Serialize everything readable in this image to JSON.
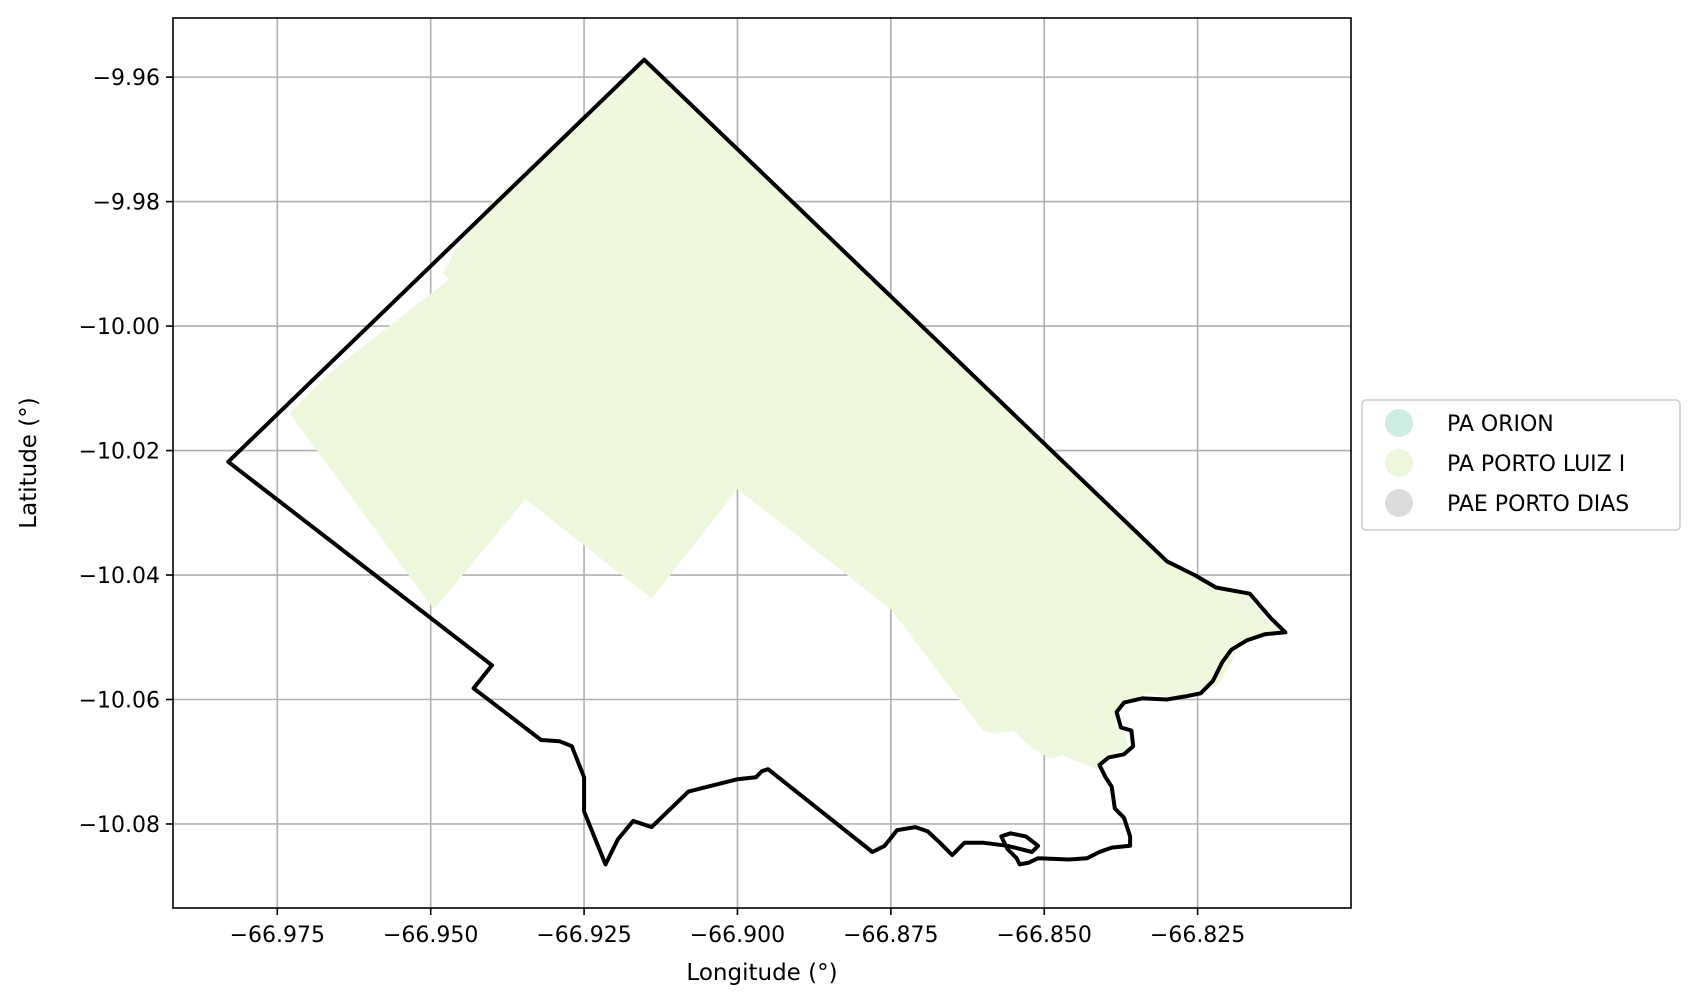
{
  "chart_data": {
    "type": "map",
    "xlabel": "Longitude (°)",
    "ylabel": "Latitude (°)",
    "xlim": [
      -66.992,
      -66.8
    ],
    "ylim": [
      -10.0935,
      -9.9505
    ],
    "grid": true,
    "x_ticks": [
      -66.975,
      -66.95,
      -66.925,
      -66.9,
      -66.875,
      -66.85,
      -66.825
    ],
    "x_tick_labels": [
      "−66.975",
      "−66.950",
      "−66.925",
      "−66.900",
      "−66.875",
      "−66.850",
      "−66.825"
    ],
    "y_ticks": [
      -9.96,
      -9.98,
      -10.0,
      -10.02,
      -10.04,
      -10.06,
      -10.08
    ],
    "y_tick_labels": [
      "−9.96",
      "−9.98",
      "−10.00",
      "−10.02",
      "−10.04",
      "−10.06",
      "−10.08"
    ],
    "legend_placement": "right, outside plot",
    "legend": [
      {
        "label": "PA ORION",
        "color": "#cdeee0"
      },
      {
        "label": "PA PORTO LUIZ I",
        "color": "#eef8dd"
      },
      {
        "label": "PAE PORTO DIAS",
        "color": "#dcdcdc"
      }
    ],
    "areas": [
      {
        "name": "PA PORTO LUIZ I",
        "color": "#eef8dd",
        "coords": [
          [
            -66.9152,
            -9.9572
          ],
          [
            -66.83,
            -10.0375
          ],
          [
            -66.8255,
            -10.04
          ],
          [
            -66.822,
            -10.042
          ],
          [
            -66.817,
            -10.043
          ],
          [
            -66.814,
            -10.047
          ],
          [
            -66.8107,
            -10.0493
          ],
          [
            -66.814,
            -10.0495
          ],
          [
            -66.818,
            -10.051
          ],
          [
            -66.8197,
            -10.0543
          ],
          [
            -66.8215,
            -10.0575
          ],
          [
            -66.8245,
            -10.059
          ],
          [
            -66.828,
            -10.06
          ],
          [
            -66.833,
            -10.059
          ],
          [
            -66.836,
            -10.06
          ],
          [
            -66.8375,
            -10.0615
          ],
          [
            -66.8385,
            -10.064
          ],
          [
            -66.8368,
            -10.0655
          ],
          [
            -66.8362,
            -10.068
          ],
          [
            -66.8395,
            -10.069
          ],
          [
            -66.8415,
            -10.0712
          ],
          [
            -66.847,
            -10.069
          ],
          [
            -66.849,
            -10.0695
          ],
          [
            -66.852,
            -10.0678
          ],
          [
            -66.855,
            -10.065
          ],
          [
            -66.858,
            -10.0655
          ],
          [
            -66.86,
            -10.065
          ],
          [
            -66.875,
            -10.0455
          ],
          [
            -66.9,
            -10.0262
          ],
          [
            -66.914,
            -10.0438
          ],
          [
            -66.9345,
            -10.0278
          ],
          [
            -66.9495,
            -10.0455
          ],
          [
            -66.973,
            -10.014
          ],
          [
            -66.967,
            -10.008
          ],
          [
            -66.96,
            -10.0025
          ],
          [
            -66.947,
            -9.9925
          ],
          [
            -66.948,
            -9.9915
          ],
          [
            -66.946,
            -9.988
          ],
          [
            -66.94,
            -9.98
          ]
        ]
      }
    ],
    "boundary": {
      "name": "outline",
      "color": "#000000",
      "coords": [
        [
          -66.9152,
          -9.9572
        ],
        [
          -66.983,
          -10.0218
        ],
        [
          -66.94,
          -10.0545
        ],
        [
          -66.943,
          -10.0582
        ],
        [
          -66.932,
          -10.0665
        ],
        [
          -66.929,
          -10.0667
        ],
        [
          -66.927,
          -10.0675
        ],
        [
          -66.925,
          -10.0725
        ],
        [
          -66.925,
          -10.078
        ],
        [
          -66.9215,
          -10.0865
        ],
        [
          -66.9195,
          -10.0825
        ],
        [
          -66.917,
          -10.0795
        ],
        [
          -66.914,
          -10.0805
        ],
        [
          -66.908,
          -10.0748
        ],
        [
          -66.9,
          -10.0728
        ],
        [
          -66.897,
          -10.0725
        ],
        [
          -66.896,
          -10.0715
        ],
        [
          -66.895,
          -10.0712
        ],
        [
          -66.878,
          -10.0845
        ],
        [
          -66.876,
          -10.0835
        ],
        [
          -66.874,
          -10.081
        ],
        [
          -66.871,
          -10.0805
        ],
        [
          -66.869,
          -10.0812
        ],
        [
          -66.867,
          -10.083
        ],
        [
          -66.865,
          -10.085
        ],
        [
          -66.863,
          -10.083
        ],
        [
          -66.86,
          -10.083
        ],
        [
          -66.856,
          -10.0835
        ],
        [
          -66.852,
          -10.0845
        ],
        [
          -66.851,
          -10.0835
        ],
        [
          -66.853,
          -10.082
        ],
        [
          -66.8555,
          -10.0815
        ],
        [
          -66.857,
          -10.082
        ],
        [
          -66.856,
          -10.084
        ],
        [
          -66.8545,
          -10.0855
        ],
        [
          -66.854,
          -10.0865
        ],
        [
          -66.8525,
          -10.0862
        ],
        [
          -66.851,
          -10.0855
        ],
        [
          -66.846,
          -10.0857
        ],
        [
          -66.843,
          -10.0855
        ],
        [
          -66.841,
          -10.0845
        ],
        [
          -66.839,
          -10.0838
        ],
        [
          -66.836,
          -10.0835
        ],
        [
          -66.836,
          -10.082
        ],
        [
          -66.837,
          -10.079
        ],
        [
          -66.8385,
          -10.0775
        ],
        [
          -66.839,
          -10.074
        ],
        [
          -66.84,
          -10.0725
        ],
        [
          -66.841,
          -10.0705
        ],
        [
          -66.8395,
          -10.0693
        ],
        [
          -66.837,
          -10.0688
        ],
        [
          -66.8355,
          -10.0675
        ],
        [
          -66.8358,
          -10.065
        ],
        [
          -66.8375,
          -10.0645
        ],
        [
          -66.8382,
          -10.062
        ],
        [
          -66.837,
          -10.0605
        ],
        [
          -66.834,
          -10.0598
        ],
        [
          -66.83,
          -10.06
        ],
        [
          -66.827,
          -10.0595
        ],
        [
          -66.8245,
          -10.059
        ],
        [
          -66.8225,
          -10.057
        ],
        [
          -66.821,
          -10.054
        ],
        [
          -66.8195,
          -10.052
        ],
        [
          -66.817,
          -10.0505
        ],
        [
          -66.814,
          -10.0495
        ],
        [
          -66.8107,
          -10.0492
        ],
        [
          -66.813,
          -10.047
        ],
        [
          -66.8165,
          -10.043
        ],
        [
          -66.822,
          -10.042
        ],
        [
          -66.8255,
          -10.04
        ],
        [
          -66.83,
          -10.0378
        ],
        [
          -66.9152,
          -9.9572
        ]
      ]
    }
  }
}
